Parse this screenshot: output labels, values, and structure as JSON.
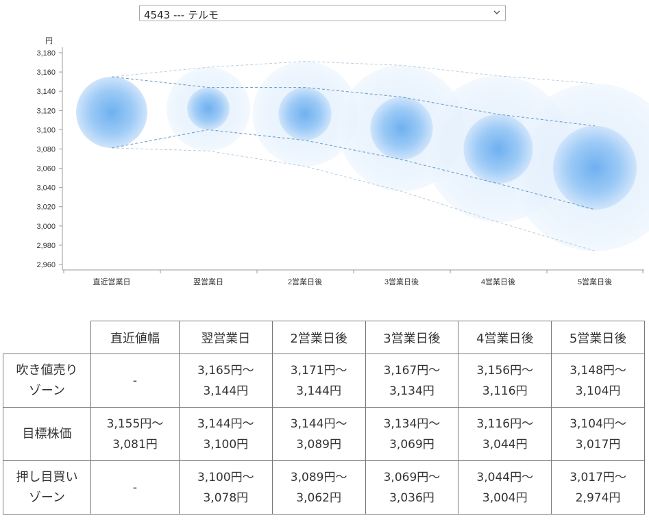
{
  "selector": {
    "value": "4543 --- テルモ"
  },
  "chart_data": {
    "type": "bubble-forecast",
    "ylabel": "円",
    "ylim": [
      2960,
      3180
    ],
    "yticks": [
      "3,180",
      "3,160",
      "3,140",
      "3,120",
      "3,100",
      "3,080",
      "3,060",
      "3,040",
      "3,020",
      "3,000",
      "2,980",
      "2,960"
    ],
    "categories": [
      "直近営業日",
      "翌営業日",
      "2営業日後",
      "3営業日後",
      "4営業日後",
      "5営業日後"
    ],
    "target_high": [
      3155,
      3144,
      3144,
      3134,
      3116,
      3104
    ],
    "target_low": [
      3081,
      3100,
      3089,
      3069,
      3044,
      3017
    ],
    "sell_high": [
      null,
      3165,
      3171,
      3167,
      3156,
      3148
    ],
    "buy_low": [
      null,
      3078,
      3062,
      3036,
      3004,
      2974
    ]
  },
  "table": {
    "headers": [
      "",
      "直近値幅",
      "翌営業日",
      "2営業日後",
      "3営業日後",
      "4営業日後",
      "5営業日後"
    ],
    "rows": [
      {
        "label": [
          "吹き値売り",
          "ゾーン"
        ],
        "cells": [
          [
            "-"
          ],
          [
            "3,165円～",
            "3,144円"
          ],
          [
            "3,171円～",
            "3,144円"
          ],
          [
            "3,167円～",
            "3,134円"
          ],
          [
            "3,156円～",
            "3,116円"
          ],
          [
            "3,148円～",
            "3,104円"
          ]
        ]
      },
      {
        "label": [
          "目標株価"
        ],
        "cells": [
          [
            "3,155円～",
            "3,081円"
          ],
          [
            "3,144円～",
            "3,100円"
          ],
          [
            "3,144円～",
            "3,089円"
          ],
          [
            "3,134円～",
            "3,069円"
          ],
          [
            "3,116円～",
            "3,044円"
          ],
          [
            "3,104円～",
            "3,017円"
          ]
        ]
      },
      {
        "label": [
          "押し目買い",
          "ゾーン"
        ],
        "cells": [
          [
            "-"
          ],
          [
            "3,100円～",
            "3,078円"
          ],
          [
            "3,089円～",
            "3,062円"
          ],
          [
            "3,069円～",
            "3,036円"
          ],
          [
            "3,044円～",
            "3,004円"
          ],
          [
            "3,017円～",
            "2,974円"
          ]
        ]
      }
    ]
  }
}
